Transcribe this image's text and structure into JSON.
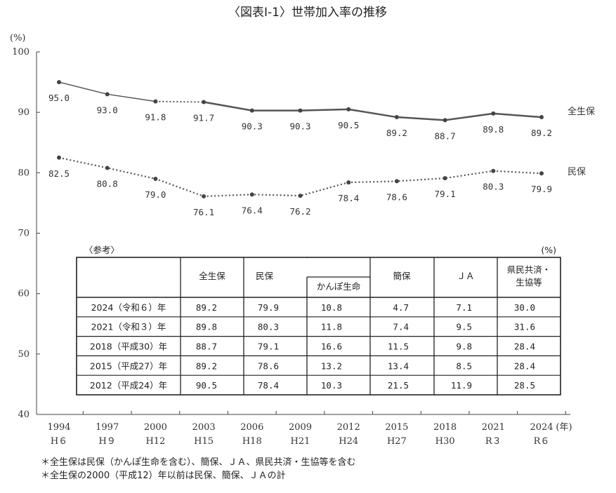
{
  "chart_data": {
    "type": "line",
    "title": "〈図表Ⅰ-1〉世帯加入率の推移",
    "ylabel": "(%)",
    "ylim": [
      40,
      100
    ],
    "yticks": [
      "40",
      "50",
      "60",
      "70",
      "80",
      "90",
      "100"
    ],
    "x_unit": "(年)",
    "x_years": [
      "1994",
      "1997",
      "2000",
      "2003",
      "2006",
      "2009",
      "2012",
      "2015",
      "2018",
      "2021",
      "2024"
    ],
    "x_eras": [
      "H６",
      "H９",
      "H12",
      "H15",
      "H18",
      "H21",
      "H24",
      "H27",
      "H30",
      "R３",
      "R６"
    ],
    "series": [
      {
        "name": "全生保",
        "values": [
          95.0,
          93.0,
          91.8,
          91.7,
          90.3,
          90.3,
          90.5,
          89.2,
          88.7,
          89.8,
          89.2
        ],
        "labels": [
          "95.0",
          "93.0",
          "91.8",
          "91.7",
          "90.3",
          "90.3",
          "90.5",
          "89.2",
          "88.7",
          "89.8",
          "89.2"
        ],
        "color": "#555555"
      },
      {
        "name": "民保",
        "values": [
          82.5,
          80.8,
          79.0,
          76.1,
          76.4,
          76.2,
          78.4,
          78.6,
          79.1,
          80.3,
          79.9
        ],
        "labels": [
          "82.5",
          "80.8",
          "79.0",
          "76.1",
          "76.4",
          "76.2",
          "78.4",
          "78.6",
          "79.1",
          "80.3",
          "79.9"
        ],
        "color": "#555555"
      }
    ]
  },
  "table": {
    "caption": "〈参考〉",
    "unit": "(%)",
    "headers": [
      "全生保",
      "民保",
      "かんぽ生命",
      "簡保",
      "ＪＡ",
      "県民共済・",
      "生協等"
    ],
    "rows": [
      {
        "label": "2024（令和６）年",
        "cells": [
          "89.2",
          "79.9",
          "10.8",
          "4.7",
          "7.1",
          "30.0"
        ]
      },
      {
        "label": "2021（令和３）年",
        "cells": [
          "89.8",
          "80.3",
          "11.8",
          "7.4",
          "9.5",
          "31.6"
        ]
      },
      {
        "label": "2018（平成30）年",
        "cells": [
          "88.7",
          "79.1",
          "16.6",
          "11.5",
          "9.8",
          "28.4"
        ]
      },
      {
        "label": "2015（平成27）年",
        "cells": [
          "89.2",
          "78.6",
          "13.2",
          "13.4",
          "8.5",
          "28.4"
        ]
      },
      {
        "label": "2012（平成24）年",
        "cells": [
          "90.5",
          "78.4",
          "10.3",
          "21.5",
          "11.9",
          "28.5"
        ]
      }
    ]
  },
  "notes": [
    "＊全生保は民保（かんぽ生命を含む）、簡保、ＪＡ、県民共済・生協等を含む",
    "＊全生保の2000（平成12）年以前は民保、簡保、ＪＡの計"
  ]
}
